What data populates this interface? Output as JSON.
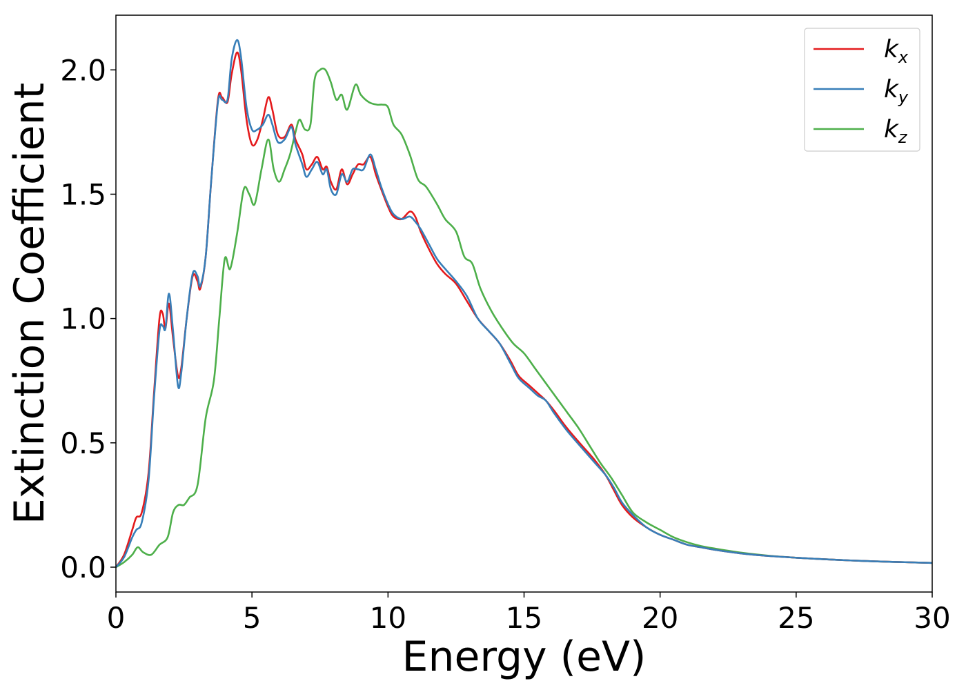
{
  "chart_data": {
    "type": "line",
    "xlabel": "Energy (eV)",
    "ylabel": "Extinction Coefficient",
    "xlim": [
      0,
      30
    ],
    "ylim": [
      -0.1,
      2.22
    ],
    "xticks": [
      0,
      5,
      10,
      15,
      20,
      25,
      30
    ],
    "xtick_labels": [
      "0",
      "5",
      "10",
      "15",
      "20",
      "25",
      "30"
    ],
    "yticks": [
      0.0,
      0.5,
      1.0,
      1.5,
      2.0
    ],
    "ytick_labels": [
      "0.0",
      "0.5",
      "1.0",
      "1.5",
      "2.0"
    ],
    "grid": false,
    "legend_position": "top-right",
    "series": [
      {
        "name": "k_x",
        "label_main": "k",
        "label_sub": "x",
        "color": "#e41a1c",
        "x": [
          0,
          0.3,
          0.6,
          0.75,
          0.95,
          1.2,
          1.4,
          1.6,
          1.72,
          1.82,
          1.95,
          2.1,
          2.28,
          2.4,
          2.6,
          2.82,
          3.0,
          3.1,
          3.3,
          3.5,
          3.75,
          3.9,
          4.1,
          4.25,
          4.45,
          4.6,
          4.8,
          5.0,
          5.2,
          5.4,
          5.6,
          5.75,
          5.95,
          6.2,
          6.45,
          6.6,
          6.85,
          7.0,
          7.2,
          7.4,
          7.6,
          7.75,
          7.9,
          8.1,
          8.3,
          8.5,
          8.7,
          8.9,
          9.1,
          9.35,
          9.55,
          9.75,
          10.0,
          10.2,
          10.5,
          10.8,
          11.0,
          11.2,
          11.5,
          11.8,
          12.1,
          12.5,
          12.9,
          13.3,
          13.7,
          14.1,
          14.5,
          14.8,
          15.2,
          15.5,
          15.8,
          16.1,
          16.5,
          16.8,
          17.2,
          17.6,
          18.0,
          18.3,
          18.6,
          19.0,
          19.5,
          20.0,
          20.5,
          21.0,
          21.5,
          22.0,
          23.0,
          24.0,
          25.0,
          26.0,
          27.0,
          28.0,
          29.0,
          30.0
        ],
        "y": [
          0.0,
          0.05,
          0.15,
          0.2,
          0.22,
          0.38,
          0.7,
          1.0,
          1.02,
          0.96,
          1.06,
          0.92,
          0.77,
          0.8,
          1.0,
          1.17,
          1.15,
          1.12,
          1.25,
          1.55,
          1.88,
          1.89,
          1.87,
          1.98,
          2.07,
          2.0,
          1.8,
          1.7,
          1.72,
          1.8,
          1.89,
          1.84,
          1.74,
          1.73,
          1.78,
          1.72,
          1.66,
          1.6,
          1.62,
          1.65,
          1.6,
          1.61,
          1.55,
          1.52,
          1.6,
          1.54,
          1.58,
          1.62,
          1.62,
          1.65,
          1.58,
          1.52,
          1.45,
          1.41,
          1.4,
          1.43,
          1.41,
          1.35,
          1.28,
          1.22,
          1.18,
          1.14,
          1.07,
          1.0,
          0.95,
          0.9,
          0.83,
          0.77,
          0.73,
          0.7,
          0.67,
          0.63,
          0.57,
          0.53,
          0.48,
          0.43,
          0.37,
          0.31,
          0.25,
          0.2,
          0.16,
          0.13,
          0.11,
          0.09,
          0.08,
          0.07,
          0.055,
          0.045,
          0.038,
          0.032,
          0.027,
          0.023,
          0.02,
          0.017
        ]
      },
      {
        "name": "k_y",
        "label_main": "k",
        "label_sub": "y",
        "color": "#377eb8",
        "x": [
          0,
          0.3,
          0.6,
          0.75,
          0.95,
          1.2,
          1.4,
          1.6,
          1.72,
          1.82,
          1.95,
          2.1,
          2.28,
          2.4,
          2.6,
          2.82,
          3.0,
          3.1,
          3.3,
          3.5,
          3.75,
          3.9,
          4.1,
          4.25,
          4.45,
          4.6,
          4.8,
          5.0,
          5.2,
          5.4,
          5.6,
          5.75,
          5.95,
          6.2,
          6.45,
          6.6,
          6.85,
          7.0,
          7.2,
          7.4,
          7.6,
          7.75,
          7.9,
          8.1,
          8.3,
          8.5,
          8.7,
          8.9,
          9.1,
          9.35,
          9.55,
          9.75,
          10.0,
          10.2,
          10.5,
          10.8,
          11.0,
          11.2,
          11.5,
          11.8,
          12.1,
          12.5,
          12.9,
          13.3,
          13.7,
          14.1,
          14.5,
          14.8,
          15.2,
          15.5,
          15.8,
          16.1,
          16.5,
          16.8,
          17.2,
          17.6,
          18.0,
          18.3,
          18.6,
          19.0,
          19.5,
          20.0,
          20.5,
          21.0,
          21.5,
          22.0,
          23.0,
          24.0,
          25.0,
          26.0,
          27.0,
          28.0,
          29.0,
          30.0
        ],
        "y": [
          0.0,
          0.04,
          0.12,
          0.15,
          0.18,
          0.35,
          0.68,
          0.95,
          0.97,
          0.96,
          1.1,
          0.95,
          0.73,
          0.78,
          1.0,
          1.18,
          1.17,
          1.13,
          1.25,
          1.55,
          1.87,
          1.88,
          1.88,
          2.04,
          2.12,
          2.05,
          1.85,
          1.76,
          1.76,
          1.78,
          1.82,
          1.78,
          1.71,
          1.72,
          1.77,
          1.7,
          1.62,
          1.57,
          1.6,
          1.63,
          1.58,
          1.6,
          1.52,
          1.5,
          1.58,
          1.55,
          1.6,
          1.6,
          1.6,
          1.66,
          1.6,
          1.53,
          1.46,
          1.42,
          1.4,
          1.41,
          1.39,
          1.36,
          1.3,
          1.24,
          1.2,
          1.15,
          1.09,
          1.0,
          0.95,
          0.9,
          0.82,
          0.76,
          0.72,
          0.69,
          0.67,
          0.62,
          0.56,
          0.52,
          0.47,
          0.42,
          0.37,
          0.32,
          0.26,
          0.21,
          0.16,
          0.13,
          0.11,
          0.09,
          0.08,
          0.07,
          0.055,
          0.045,
          0.038,
          0.032,
          0.027,
          0.023,
          0.02,
          0.017
        ]
      },
      {
        "name": "k_z",
        "label_main": "k",
        "label_sub": "z",
        "color": "#4daf4a",
        "x": [
          0,
          0.3,
          0.6,
          0.8,
          1.0,
          1.3,
          1.6,
          1.9,
          2.1,
          2.3,
          2.5,
          2.7,
          3.0,
          3.3,
          3.6,
          3.8,
          4.0,
          4.2,
          4.45,
          4.7,
          4.9,
          5.1,
          5.35,
          5.6,
          5.8,
          6.0,
          6.2,
          6.4,
          6.6,
          6.75,
          6.95,
          7.15,
          7.3,
          7.5,
          7.7,
          7.9,
          8.1,
          8.3,
          8.5,
          8.8,
          9.0,
          9.3,
          9.6,
          9.8,
          10.0,
          10.2,
          10.5,
          10.8,
          11.1,
          11.4,
          11.8,
          12.1,
          12.5,
          12.8,
          13.1,
          13.4,
          13.8,
          14.2,
          14.6,
          15.0,
          15.4,
          15.8,
          16.2,
          16.6,
          17.0,
          17.4,
          17.8,
          18.2,
          18.6,
          19.0,
          19.5,
          20.0,
          20.5,
          21.0,
          21.5,
          22.0,
          23.0,
          24.0,
          25.0,
          26.0,
          27.0,
          28.0,
          29.0,
          30.0
        ],
        "y": [
          0.0,
          0.02,
          0.05,
          0.08,
          0.06,
          0.05,
          0.09,
          0.12,
          0.22,
          0.25,
          0.25,
          0.28,
          0.33,
          0.6,
          0.75,
          1.0,
          1.24,
          1.2,
          1.34,
          1.52,
          1.5,
          1.46,
          1.6,
          1.72,
          1.6,
          1.55,
          1.6,
          1.66,
          1.75,
          1.8,
          1.76,
          1.78,
          1.96,
          2.0,
          2.0,
          1.95,
          1.88,
          1.9,
          1.84,
          1.94,
          1.9,
          1.87,
          1.86,
          1.86,
          1.85,
          1.78,
          1.74,
          1.66,
          1.56,
          1.53,
          1.46,
          1.4,
          1.35,
          1.25,
          1.22,
          1.12,
          1.03,
          0.96,
          0.9,
          0.86,
          0.8,
          0.74,
          0.68,
          0.62,
          0.56,
          0.49,
          0.42,
          0.36,
          0.29,
          0.22,
          0.18,
          0.15,
          0.12,
          0.1,
          0.085,
          0.075,
          0.058,
          0.046,
          0.038,
          0.032,
          0.027,
          0.023,
          0.02,
          0.017
        ]
      }
    ]
  }
}
